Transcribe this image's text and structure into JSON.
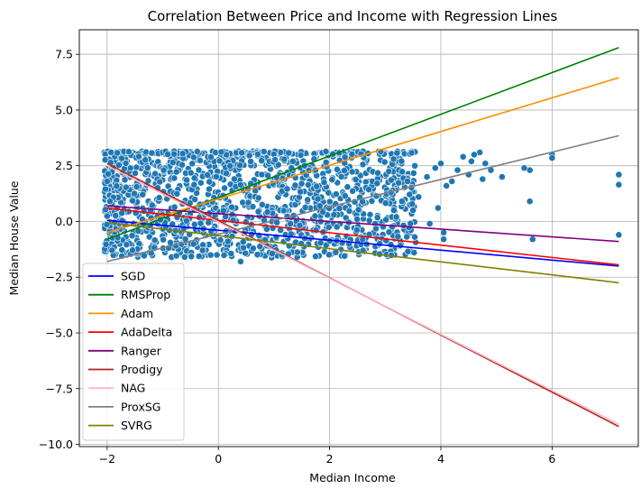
{
  "chart_data": {
    "type": "scatter",
    "title": "Correlation Between Price and Income with Regression Lines",
    "xlabel": "Median Income",
    "ylabel": "Median House Value",
    "xlim": [
      -2.5,
      7.55
    ],
    "ylim": [
      -10.1,
      8.6
    ],
    "xticks": [
      -2,
      0,
      2,
      4,
      6
    ],
    "yticks": [
      -10.0,
      -7.5,
      -5.0,
      -2.5,
      0.0,
      2.5,
      5.0,
      7.5
    ],
    "xtick_labels": [
      "−2",
      "0",
      "2",
      "4",
      "6"
    ],
    "ytick_labels": [
      "−10.0",
      "−7.5",
      "−5.0",
      "−2.5",
      "0.0",
      "2.5",
      "5.0",
      "7.5"
    ],
    "grid": true,
    "legend_position": "lower-left",
    "scatter_color": "#1f77b4",
    "scatter_outliers": [
      [
        7.2,
        2.1
      ],
      [
        7.2,
        1.65
      ],
      [
        7.2,
        -0.6
      ],
      [
        6.0,
        3.0
      ],
      [
        6.0,
        2.85
      ],
      [
        5.6,
        2.3
      ],
      [
        5.6,
        0.9
      ],
      [
        5.65,
        -0.8
      ],
      [
        5.5,
        2.4
      ],
      [
        5.1,
        2.0
      ],
      [
        4.9,
        2.3
      ],
      [
        4.7,
        3.1
      ],
      [
        4.6,
        3.0
      ],
      [
        4.55,
        2.7
      ],
      [
        4.4,
        2.9
      ],
      [
        4.3,
        2.3
      ],
      [
        4.2,
        1.8
      ],
      [
        4.1,
        1.6
      ],
      [
        4.05,
        -0.5
      ],
      [
        4.05,
        -0.8
      ],
      [
        3.95,
        0.6
      ],
      [
        4.5,
        2.1
      ],
      [
        3.8,
        -0.1
      ],
      [
        3.9,
        2.4
      ],
      [
        3.6,
        1.1
      ],
      [
        3.5,
        0.5
      ],
      [
        3.4,
        1.8
      ],
      [
        3.3,
        0.9
      ],
      [
        3.2,
        0.2
      ],
      [
        3.1,
        1.3
      ],
      [
        4.0,
        2.6
      ],
      [
        4.8,
        2.6
      ],
      [
        4.75,
        1.9
      ],
      [
        3.75,
        2.0
      ],
      [
        3.15,
        2.8
      ],
      [
        2.9,
        -1.0
      ],
      [
        2.6,
        -1.3
      ],
      [
        0.4,
        -1.8
      ],
      [
        -2.0,
        1.8
      ],
      [
        -1.95,
        0.9
      ]
    ],
    "series": [
      {
        "name": "SGD",
        "color": "#0000ff",
        "x": [
          -2.0,
          7.2
        ],
        "y": [
          0.05,
          -2.0
        ]
      },
      {
        "name": "RMSProp",
        "color": "#008000",
        "x": [
          -2.0,
          7.2
        ],
        "y": [
          -0.8,
          7.8
        ]
      },
      {
        "name": "Adam",
        "color": "#ff8c00",
        "x": [
          -2.0,
          7.2
        ],
        "y": [
          -0.5,
          6.45
        ]
      },
      {
        "name": "AdaDelta",
        "color": "#ff0000",
        "x": [
          -2.0,
          7.2
        ],
        "y": [
          0.6,
          -1.95
        ]
      },
      {
        "name": "Ranger",
        "color": "#800080",
        "x": [
          -2.0,
          7.2
        ],
        "y": [
          0.7,
          -0.9
        ]
      },
      {
        "name": "Prodigy",
        "color": "#b22222",
        "x": [
          -2.0,
          7.2
        ],
        "y": [
          2.6,
          -9.2
        ]
      },
      {
        "name": "NAG",
        "color": "#ffb6c1",
        "x": [
          -2.0,
          7.2
        ],
        "y": [
          2.5,
          -9.1
        ]
      },
      {
        "name": "ProxSG",
        "color": "#808080",
        "x": [
          -2.0,
          7.2
        ],
        "y": [
          -1.8,
          3.85
        ]
      },
      {
        "name": "SVRG",
        "color": "#808000",
        "x": [
          -2.0,
          7.2
        ],
        "y": [
          -0.05,
          -2.75
        ]
      }
    ]
  }
}
